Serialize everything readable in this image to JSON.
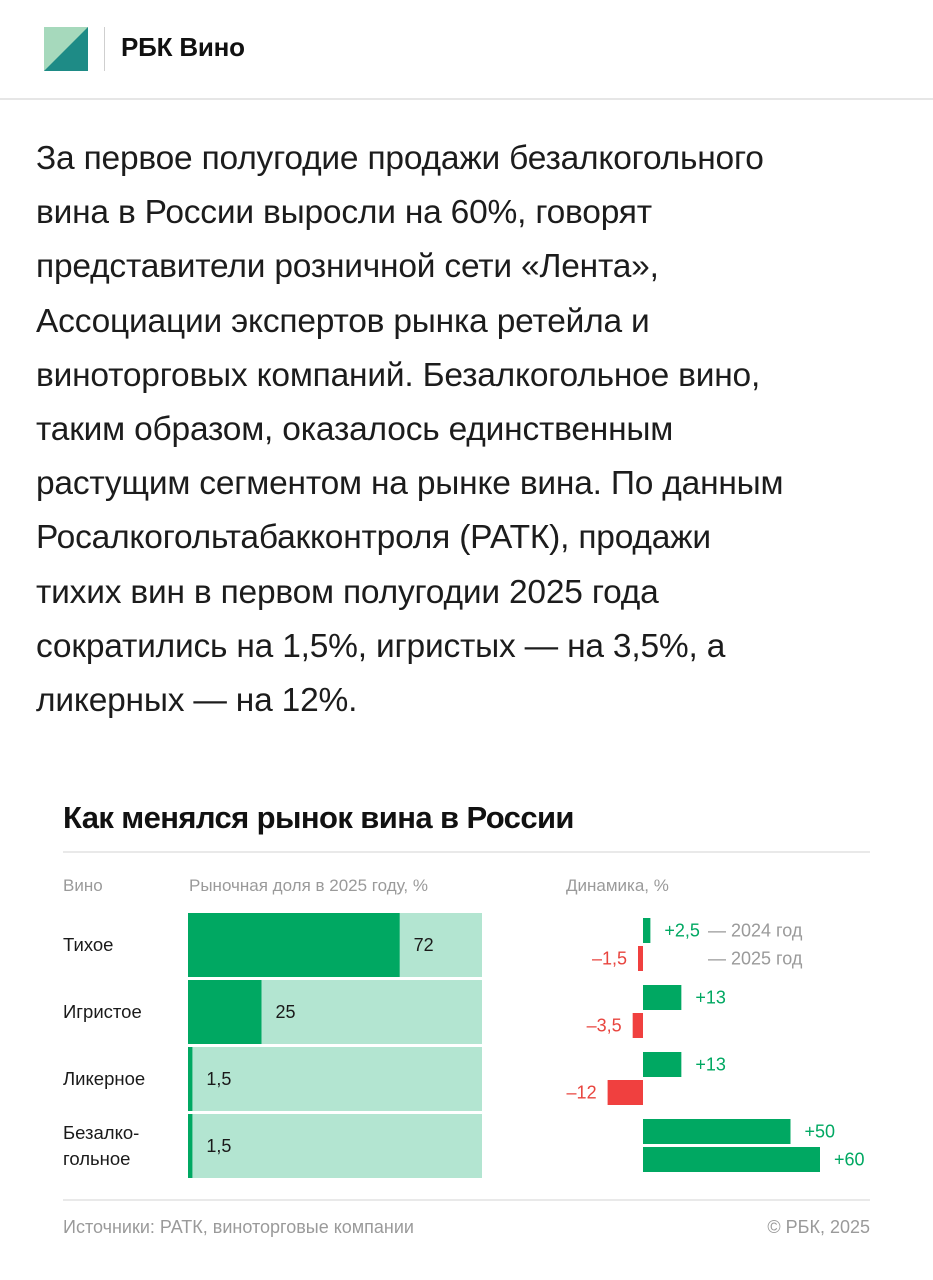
{
  "header": {
    "brand": "РБК Вино",
    "logo_colors": {
      "light": "#a6d9bc",
      "dark": "#1e8b86"
    }
  },
  "article": {
    "lines": [
      "За первое полугодие продажи безалкогольного",
      "вина в России выросли на 60%, говорят",
      "представители розничной сети «Лента»,",
      "Ассоциации экспертов рынка ретейла и",
      "виноторговых компаний. Безалкогольное вино,",
      "таким образом, оказалось единственным",
      "растущим сегментом на рынке вина. По данным",
      "Росалкогольтабакконтроля (РАТК), продажи",
      "тихих вин в первом полугодии 2025 года",
      "сократились на 1,5%, игристых — на 3,5%, а",
      "ликерных — на 12%."
    ]
  },
  "chart_data": {
    "type": "bar",
    "title": "Как менялся рынок вина в России",
    "column_headers": {
      "category": "Вино",
      "share": "Рыночная доля в 2025 году, %",
      "dynamics": "Динамика, %"
    },
    "categories": [
      {
        "lines": [
          "Тихое"
        ]
      },
      {
        "lines": [
          "Игристое"
        ]
      },
      {
        "lines": [
          "Ликерное"
        ]
      },
      {
        "lines": [
          "Безалко-",
          "гольное"
        ]
      }
    ],
    "share": {
      "values": [
        72,
        25,
        1.5,
        1.5
      ],
      "labels": [
        "72",
        "25",
        "1,5",
        "1,5"
      ],
      "max": 100
    },
    "dynamics": {
      "series": [
        {
          "name": "2024 год",
          "values": [
            2.5,
            13,
            13,
            50
          ],
          "labels": [
            "+2,5",
            "+13",
            "+13",
            "+50"
          ]
        },
        {
          "name": "2025 год",
          "values": [
            -1.5,
            -3.5,
            -12,
            60
          ],
          "labels": [
            "–1,5",
            "–3,5",
            "–12",
            "+60"
          ]
        }
      ],
      "legend_prefix": "—",
      "legend_placement": "inline-top-right"
    },
    "colors": {
      "positive": "#00a862",
      "negative": "#f0403f",
      "share_bar": "#00a862",
      "share_track": "#b3e5d1",
      "positive_text": "#00a862",
      "negative_text": "#e8443e"
    },
    "source": "Источники: РАТК, виноторговые компании",
    "copyright": "© РБК, 2025"
  }
}
